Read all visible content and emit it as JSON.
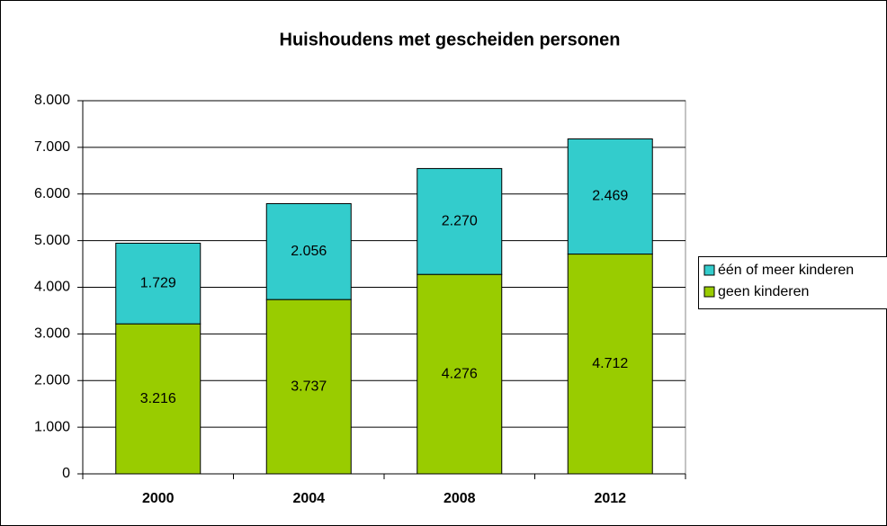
{
  "chart_data": {
    "type": "stacked_bar",
    "title": "Huishoudens met gescheiden personen",
    "categories": [
      "2000",
      "2004",
      "2008",
      "2012"
    ],
    "series": [
      {
        "name": "geen kinderen",
        "color": "#99cc00",
        "values": [
          3216,
          3737,
          4276,
          4712
        ],
        "value_labels": [
          "3.216",
          "3.737",
          "4.276",
          "4.712"
        ]
      },
      {
        "name": "één of meer kinderen",
        "color": "#33cccc",
        "values": [
          1729,
          2056,
          2270,
          2469
        ],
        "value_labels": [
          "1.729",
          "2.056",
          "2.270",
          "2.469"
        ]
      }
    ],
    "ylim": [
      0,
      8000
    ],
    "yticks": [
      0,
      {
        "value": 1000,
        "label": "1.000"
      },
      {
        "value": 2000,
        "label": "2.000"
      },
      {
        "value": 3000,
        "label": "3.000"
      },
      {
        "value": 4000,
        "label": "4.000"
      },
      {
        "value": 5000,
        "label": "5.000"
      },
      {
        "value": 6000,
        "label": "6.000"
      },
      {
        "value": 7000,
        "label": "7.000"
      },
      {
        "value": 8000,
        "label": "8.000"
      }
    ],
    "grid": true,
    "legend": "right"
  }
}
